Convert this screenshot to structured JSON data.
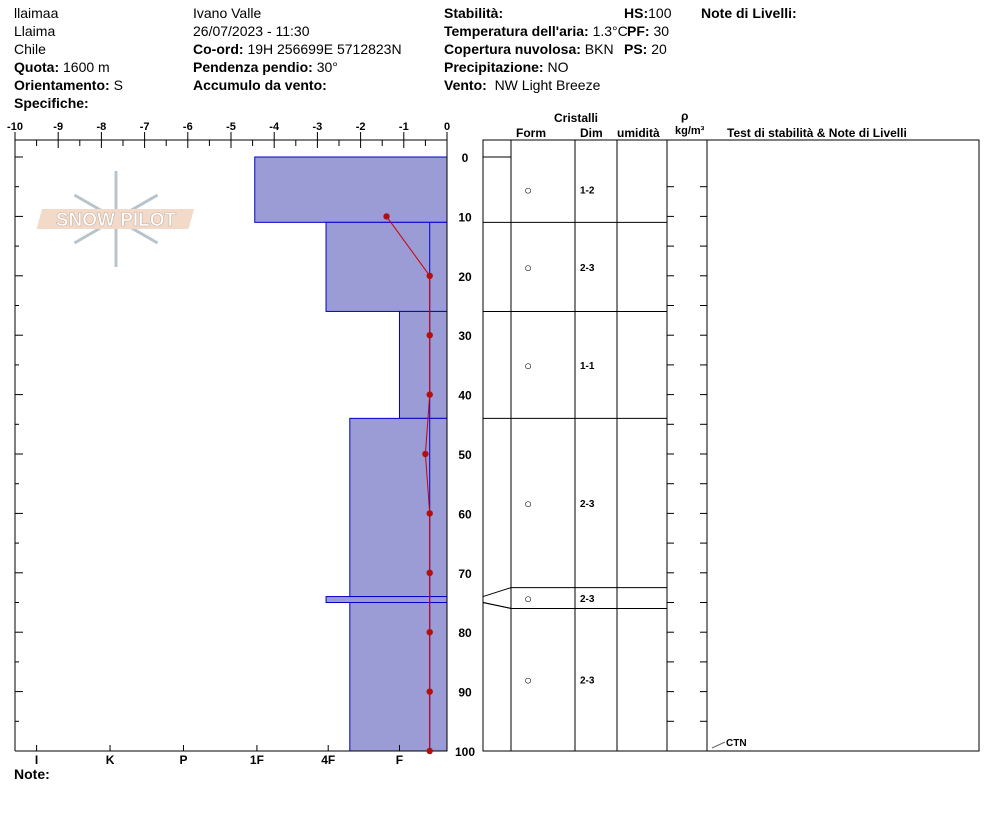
{
  "header": {
    "site": "llaimaa",
    "location": "Llaima",
    "country": "Chile",
    "quota_label": "Quota:",
    "quota": "1600 m",
    "orient_label": "Orientamento:",
    "orient": "S",
    "spec_label": "Specifiche:",
    "observer": "Ivano Valle",
    "datetime": "26/07/2023 - 11:30",
    "coord_label": "Co-ord:",
    "coord": "19H 256699E 5712823N",
    "slope_label": "Pendenza pendio:",
    "slope": "30°",
    "wind_load_label": "Accumulo da vento:",
    "stab_label": "Stabilità:",
    "airtemp_label": "Temperatura dell'aria:",
    "airtemp": "1.3°C",
    "cloud_label": "Copertura nuvolosa:",
    "cloud": "BKN",
    "precip_label": "Precipitazione:",
    "precip": "NO",
    "wind_label": "Vento:",
    "wind": "NW Light Breeze",
    "hs_label": "HS:",
    "hs": "100",
    "pf_label": "PF:",
    "pf": "30",
    "ps_label": "PS:",
    "ps": "20",
    "layer_notes_label": "Note di Livelli:",
    "note_label": "Note:"
  },
  "table": {
    "cristalli": "Cristalli",
    "form": "Form",
    "dim": "Dim",
    "umidita": "umidità",
    "rho": "ρ",
    "density": "kg/m³",
    "tests": "Test di stabilità & Note di Livelli",
    "ctn": "CTN"
  },
  "logo": "SNOW PILOT",
  "chart_data": {
    "type": "snow-profile",
    "temp_axis": {
      "range": [
        -10,
        0
      ],
      "ticks": [
        "-10",
        "-9",
        "-8",
        "-7",
        "-6",
        "-5",
        "-4",
        "-3",
        "-2",
        "-1",
        "0"
      ]
    },
    "depth_axis": {
      "range": [
        0,
        100
      ],
      "ticks": [
        "0",
        "10",
        "20",
        "30",
        "40",
        "50",
        "60",
        "70",
        "80",
        "90",
        "100"
      ]
    },
    "hardness_labels": [
      {
        "label": "I",
        "v": -9.5
      },
      {
        "label": "K",
        "v": -7.8
      },
      {
        "label": "P",
        "v": -6.1
      },
      {
        "label": "1F",
        "v": -4.4
      },
      {
        "label": "4F",
        "v": -2.75
      },
      {
        "label": "F",
        "v": -1.1
      }
    ],
    "layers": [
      {
        "top": 0,
        "bottom": 11,
        "hardness": "1F",
        "v": -4.45,
        "form": "○",
        "dim": "1-2"
      },
      {
        "top": 11,
        "bottom": 26,
        "hardness": "4F",
        "v": -2.8,
        "form": "○",
        "dim": "2-3"
      },
      {
        "top": 26,
        "bottom": 44,
        "hardness": "F",
        "v": -1.1,
        "form": "○",
        "dim": "1-1"
      },
      {
        "top": 44,
        "bottom": 74,
        "hardness": "4F-F",
        "v": -2.25,
        "form": "○",
        "dim": "2-3"
      },
      {
        "top": 74,
        "bottom": 75,
        "hardness": "4F",
        "v": -2.8,
        "form": "○",
        "dim": "2-3"
      },
      {
        "top": 75,
        "bottom": 100,
        "hardness": "4F-F",
        "v": -2.25,
        "form": "○",
        "dim": "2-3"
      }
    ],
    "table_layers": [
      [
        0,
        11
      ],
      [
        11,
        26
      ],
      [
        26,
        44
      ],
      [
        44,
        72.5
      ],
      [
        72.5,
        76
      ],
      [
        76,
        100
      ]
    ],
    "temperature": [
      {
        "d": 10,
        "t": -1.4
      },
      {
        "d": 20,
        "t": -0.4
      },
      {
        "d": 30,
        "t": -0.4
      },
      {
        "d": 40,
        "t": -0.4
      },
      {
        "d": 50,
        "t": -0.5
      },
      {
        "d": 60,
        "t": -0.4
      },
      {
        "d": 70,
        "t": -0.4
      },
      {
        "d": 80,
        "t": -0.4
      },
      {
        "d": 90,
        "t": -0.4
      },
      {
        "d": 100,
        "t": -0.4
      }
    ],
    "test_marks": [
      {
        "depth": 100,
        "label": "CTN"
      }
    ]
  }
}
